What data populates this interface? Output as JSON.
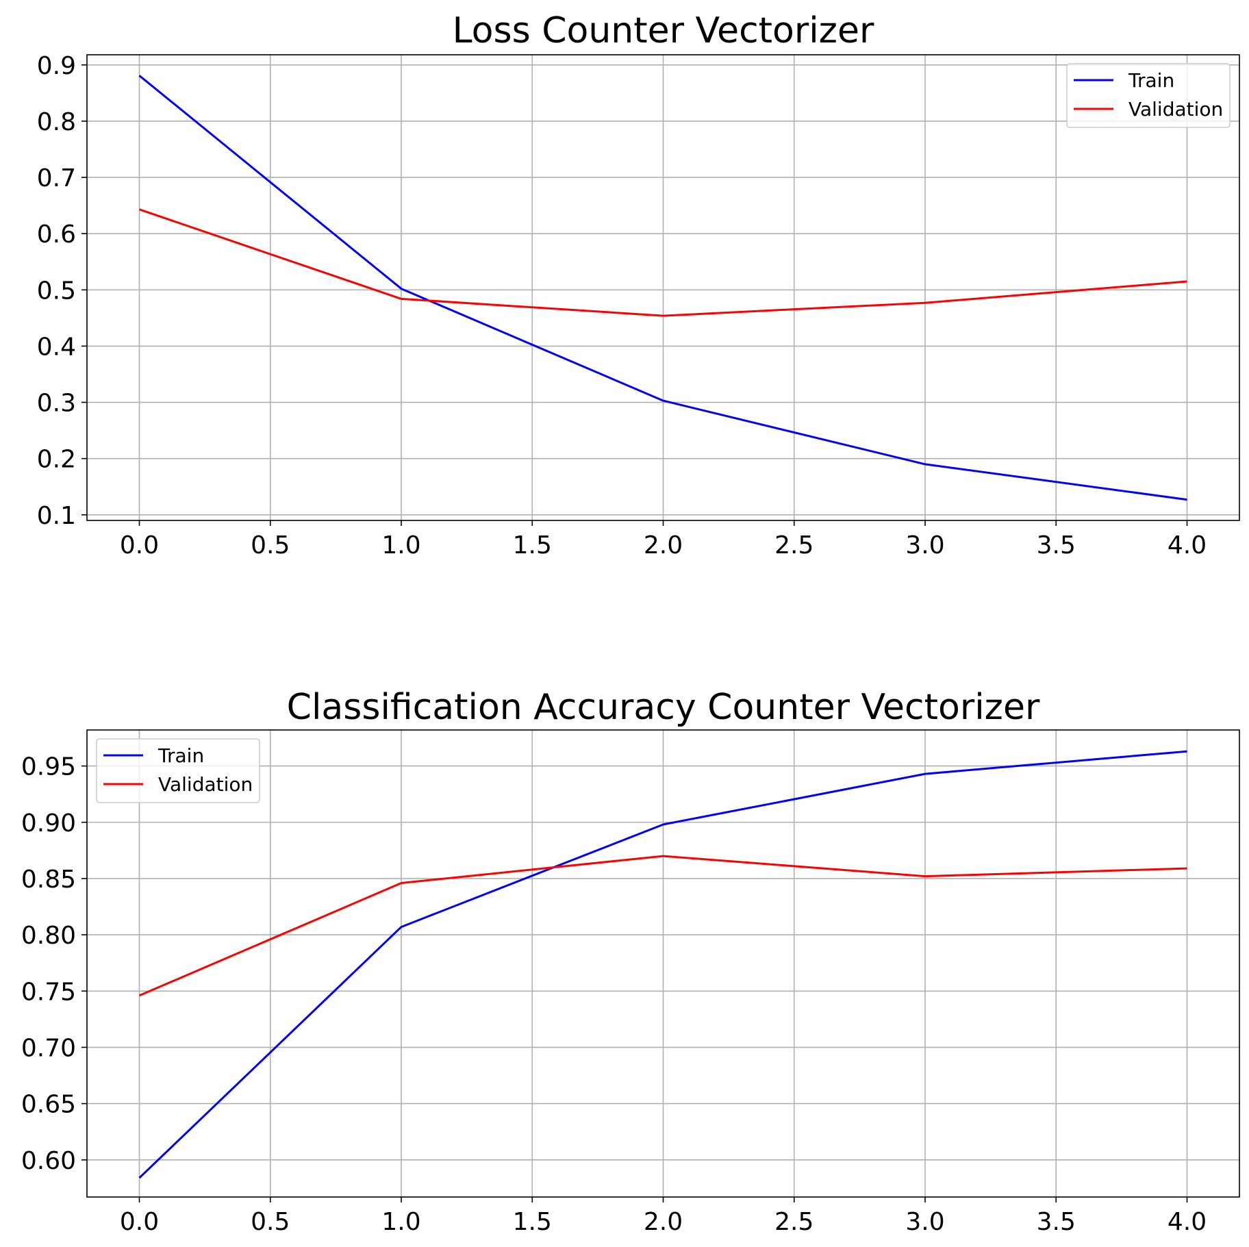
{
  "chart_data": [
    {
      "type": "line",
      "title": "Loss Counter Vectorizer",
      "xlabel": "",
      "ylabel": "",
      "x": [
        0,
        1,
        2,
        3,
        4
      ],
      "xlim": [
        -0.2,
        4.2
      ],
      "ylim": [
        0.09,
        0.918
      ],
      "xticks": [
        "0.0",
        "0.5",
        "1.0",
        "1.5",
        "2.0",
        "2.5",
        "3.0",
        "3.5",
        "4.0"
      ],
      "yticks": [
        "0.1",
        "0.2",
        "0.3",
        "0.4",
        "0.5",
        "0.6",
        "0.7",
        "0.8",
        "0.9"
      ],
      "grid": true,
      "legend_position": "top-right",
      "series": [
        {
          "name": "Train",
          "color": "#0000ff",
          "values": [
            0.881,
            0.502,
            0.303,
            0.19,
            0.127
          ]
        },
        {
          "name": "Validation",
          "color": "#ff0000",
          "values": [
            0.643,
            0.484,
            0.454,
            0.477,
            0.515
          ]
        }
      ]
    },
    {
      "type": "line",
      "title": "Classification Accuracy Counter Vectorizer",
      "xlabel": "",
      "ylabel": "",
      "x": [
        0,
        1,
        2,
        3,
        4
      ],
      "xlim": [
        -0.2,
        4.2
      ],
      "ylim": [
        0.567,
        0.982
      ],
      "xticks": [
        "0.0",
        "0.5",
        "1.0",
        "1.5",
        "2.0",
        "2.5",
        "3.0",
        "3.5",
        "4.0"
      ],
      "yticks": [
        "0.60",
        "0.65",
        "0.70",
        "0.75",
        "0.80",
        "0.85",
        "0.90",
        "0.95"
      ],
      "grid": true,
      "legend_position": "top-left",
      "series": [
        {
          "name": "Train",
          "color": "#0000ff",
          "values": [
            0.584,
            0.807,
            0.898,
            0.943,
            0.963
          ]
        },
        {
          "name": "Validation",
          "color": "#ff0000",
          "values": [
            0.746,
            0.846,
            0.87,
            0.852,
            0.859
          ]
        }
      ]
    }
  ]
}
